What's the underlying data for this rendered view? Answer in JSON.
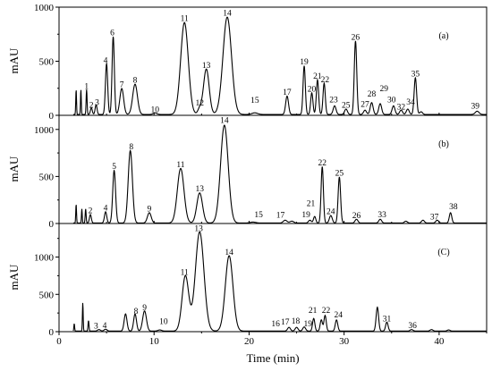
{
  "chart_data": {
    "type": "line",
    "xlabel": "Time (min)",
    "ylabel": "mAU",
    "xlim": [
      0,
      45
    ],
    "x_ticks": [
      "0",
      "10",
      "20",
      "30",
      "40"
    ],
    "grid": false,
    "panels": [
      {
        "label": "(a)",
        "ylim": [
          0,
          1000
        ],
        "y_ticks": [
          "0",
          "500",
          "1000"
        ],
        "baseline": 8,
        "peaks": [
          {
            "t": 1.8,
            "h": 230,
            "w": 0.04
          },
          {
            "t": 2.3,
            "h": 230,
            "w": 0.04
          },
          {
            "t": 2.9,
            "h": 230,
            "w": 0.05,
            "label": "1",
            "lx": 2.9,
            "ly": 245
          },
          {
            "t": 3.4,
            "h": 60,
            "w": 0.1,
            "label": "2",
            "lx": 3.4,
            "ly": 72
          },
          {
            "t": 3.9,
            "h": 90,
            "w": 0.1,
            "label": "3",
            "lx": 4.0,
            "ly": 95
          },
          {
            "t": 5.0,
            "h": 470,
            "w": 0.12,
            "label": "4",
            "lx": 4.9,
            "ly": 485
          },
          {
            "t": 5.7,
            "h": 720,
            "w": 0.12,
            "label": "6",
            "lx": 5.6,
            "ly": 740
          },
          {
            "t": 6.6,
            "h": 240,
            "w": 0.2,
            "label": "7",
            "lx": 6.6,
            "ly": 260
          },
          {
            "t": 8.0,
            "h": 280,
            "w": 0.25,
            "label": "8",
            "lx": 8.0,
            "ly": 300
          },
          {
            "t": 10.1,
            "h": 15,
            "w": 0.2,
            "label": "10",
            "lx": 10.1,
            "ly": 30
          },
          {
            "t": 13.2,
            "h": 850,
            "w": 0.4,
            "label": "11",
            "lx": 13.2,
            "ly": 870
          },
          {
            "t": 14.8,
            "h": 50,
            "w": 0.2,
            "label": "12",
            "lx": 14.8,
            "ly": 90
          },
          {
            "t": 15.5,
            "h": 420,
            "w": 0.3,
            "label": "13",
            "lx": 15.5,
            "ly": 440
          },
          {
            "t": 17.7,
            "h": 900,
            "w": 0.45,
            "label": "14",
            "lx": 17.7,
            "ly": 920
          },
          {
            "t": 20.6,
            "h": 15,
            "w": 0.3,
            "label": "15",
            "lx": 20.6,
            "ly": 115
          },
          {
            "t": 24.0,
            "h": 170,
            "w": 0.15,
            "label": "17",
            "lx": 24.0,
            "ly": 190
          },
          {
            "t": 25.8,
            "h": 450,
            "w": 0.12,
            "label": "19",
            "lx": 25.8,
            "ly": 470
          },
          {
            "t": 26.6,
            "h": 200,
            "w": 0.12,
            "label": "20",
            "lx": 26.6,
            "ly": 220
          },
          {
            "t": 27.2,
            "h": 320,
            "w": 0.12,
            "label": "21",
            "lx": 27.2,
            "ly": 340
          },
          {
            "t": 27.9,
            "h": 290,
            "w": 0.12,
            "label": "22",
            "lx": 28.0,
            "ly": 305
          },
          {
            "t": 29.0,
            "h": 80,
            "w": 0.15,
            "label": "23",
            "lx": 28.9,
            "ly": 120
          },
          {
            "t": 30.2,
            "h": 50,
            "w": 0.15,
            "label": "25",
            "lx": 30.2,
            "ly": 70
          },
          {
            "t": 31.2,
            "h": 680,
            "w": 0.13,
            "label": "26",
            "lx": 31.2,
            "ly": 700
          },
          {
            "t": 32.2,
            "h": 40,
            "w": 0.15,
            "label": "27",
            "lx": 32.2,
            "ly": 80
          },
          {
            "t": 32.9,
            "h": 110,
            "w": 0.15,
            "label": "28",
            "lx": 32.9,
            "ly": 175
          },
          {
            "t": 33.8,
            "h": 100,
            "w": 0.15,
            "label": "29",
            "lx": 34.2,
            "ly": 225
          },
          {
            "t": 35.2,
            "h": 80,
            "w": 0.15,
            "label": "30",
            "lx": 35.0,
            "ly": 120
          },
          {
            "t": 36.0,
            "h": 40,
            "w": 0.15,
            "label": "32",
            "lx": 36.0,
            "ly": 55
          },
          {
            "t": 36.7,
            "h": 50,
            "w": 0.15,
            "label": "34",
            "lx": 37.0,
            "ly": 100
          },
          {
            "t": 37.5,
            "h": 340,
            "w": 0.13,
            "label": "35",
            "lx": 37.5,
            "ly": 360
          },
          {
            "t": 38.1,
            "h": 25,
            "w": 0.15
          },
          {
            "t": 44.0,
            "h": 30,
            "w": 0.2,
            "label": "39",
            "lx": 43.8,
            "ly": 60
          }
        ]
      },
      {
        "label": "(b)",
        "ylim": [
          0,
          1150
        ],
        "y_ticks": [
          "0",
          "500",
          "1000"
        ],
        "baseline": 5,
        "peaks": [
          {
            "t": 1.8,
            "h": 200,
            "w": 0.04
          },
          {
            "t": 2.4,
            "h": 150,
            "w": 0.04
          },
          {
            "t": 2.8,
            "h": 150,
            "w": 0.05
          },
          {
            "t": 3.3,
            "h": 90,
            "w": 0.1,
            "label": "2",
            "lx": 3.3,
            "ly": 110
          },
          {
            "t": 4.9,
            "h": 120,
            "w": 0.12,
            "label": "4",
            "lx": 4.9,
            "ly": 140
          },
          {
            "t": 5.8,
            "h": 560,
            "w": 0.15,
            "label": "5",
            "lx": 5.8,
            "ly": 580
          },
          {
            "t": 7.5,
            "h": 770,
            "w": 0.22,
            "label": "8",
            "lx": 7.6,
            "ly": 790
          },
          {
            "t": 9.5,
            "h": 110,
            "w": 0.2,
            "label": "9",
            "lx": 9.5,
            "ly": 130
          },
          {
            "t": 12.8,
            "h": 580,
            "w": 0.35,
            "label": "11",
            "lx": 12.8,
            "ly": 600
          },
          {
            "t": 14.8,
            "h": 320,
            "w": 0.3,
            "label": "13",
            "lx": 14.8,
            "ly": 340
          },
          {
            "t": 17.4,
            "h": 1040,
            "w": 0.4,
            "label": "14",
            "lx": 17.4,
            "ly": 1070
          },
          {
            "t": 20.4,
            "h": 10,
            "w": 0.3,
            "label": "15",
            "lx": 21.0,
            "ly": 65
          },
          {
            "t": 23.8,
            "h": 30,
            "w": 0.2,
            "label": "17",
            "lx": 23.3,
            "ly": 60
          },
          {
            "t": 24.5,
            "h": 20,
            "w": 0.2
          },
          {
            "t": 26.4,
            "h": 30,
            "w": 0.15,
            "label": "19",
            "lx": 26.0,
            "ly": 65
          },
          {
            "t": 26.9,
            "h": 70,
            "w": 0.12,
            "label": "21",
            "lx": 26.5,
            "ly": 185
          },
          {
            "t": 27.7,
            "h": 600,
            "w": 0.12,
            "label": "22",
            "lx": 27.7,
            "ly": 620
          },
          {
            "t": 28.6,
            "h": 80,
            "w": 0.15,
            "label": "24",
            "lx": 28.6,
            "ly": 100
          },
          {
            "t": 29.5,
            "h": 490,
            "w": 0.13,
            "label": "25",
            "lx": 29.5,
            "ly": 510
          },
          {
            "t": 31.3,
            "h": 40,
            "w": 0.15,
            "label": "26",
            "lx": 31.3,
            "ly": 55
          },
          {
            "t": 33.8,
            "h": 40,
            "w": 0.15,
            "label": "33",
            "lx": 34.0,
            "ly": 65
          },
          {
            "t": 36.5,
            "h": 20,
            "w": 0.15
          },
          {
            "t": 38.3,
            "h": 30,
            "w": 0.15
          },
          {
            "t": 39.8,
            "h": 30,
            "w": 0.15,
            "label": "37",
            "lx": 39.5,
            "ly": 45
          },
          {
            "t": 41.2,
            "h": 110,
            "w": 0.13,
            "label": "38",
            "lx": 41.5,
            "ly": 150
          }
        ]
      },
      {
        "label": "(C)",
        "ylim": [
          0,
          1450
        ],
        "y_ticks": [
          "0",
          "500",
          "1000"
        ],
        "baseline": 8,
        "peaks": [
          {
            "t": 1.6,
            "h": 100,
            "w": 0.04
          },
          {
            "t": 2.5,
            "h": 380,
            "w": 0.04
          },
          {
            "t": 3.1,
            "h": 140,
            "w": 0.05
          },
          {
            "t": 4.2,
            "h": 20,
            "w": 0.15,
            "label": "3",
            "lx": 3.9,
            "ly": 40
          },
          {
            "t": 4.9,
            "h": 25,
            "w": 0.15,
            "label": "4",
            "lx": 4.8,
            "ly": 50
          },
          {
            "t": 7.0,
            "h": 230,
            "w": 0.15
          },
          {
            "t": 8.0,
            "h": 230,
            "w": 0.15,
            "label": "8",
            "lx": 8.1,
            "ly": 240
          },
          {
            "t": 9.0,
            "h": 270,
            "w": 0.2,
            "label": "9",
            "lx": 9.0,
            "ly": 290
          },
          {
            "t": 10.6,
            "h": 15,
            "w": 0.2,
            "label": "10",
            "lx": 11.0,
            "ly": 100
          },
          {
            "t": 13.3,
            "h": 740,
            "w": 0.35,
            "label": "11",
            "lx": 13.2,
            "ly": 760
          },
          {
            "t": 14.8,
            "h": 1330,
            "w": 0.45,
            "label": "13",
            "lx": 14.7,
            "ly": 1350
          },
          {
            "t": 17.9,
            "h": 1010,
            "w": 0.4,
            "label": "14",
            "lx": 17.9,
            "ly": 1030
          },
          {
            "t": 24.2,
            "h": 50,
            "w": 0.15,
            "label": "16",
            "lx": 22.8,
            "ly": 70
          },
          {
            "t": 25.0,
            "h": 50,
            "w": 0.15,
            "label": "17",
            "lx": 23.8,
            "ly": 95
          },
          {
            "t": 25.8,
            "h": 55,
            "w": 0.15,
            "label": "18",
            "lx": 24.9,
            "ly": 105
          },
          {
            "t": 26.8,
            "h": 170,
            "w": 0.12,
            "label": "21",
            "lx": 26.7,
            "ly": 250
          },
          {
            "t": 27.6,
            "h": 150,
            "w": 0.12,
            "label": "19",
            "lx": 26.2,
            "ly": 70
          },
          {
            "t": 28.0,
            "h": 210,
            "w": 0.12,
            "label": "22",
            "lx": 28.1,
            "ly": 250
          },
          {
            "t": 29.2,
            "h": 150,
            "w": 0.13,
            "label": "24",
            "lx": 29.4,
            "ly": 190
          },
          {
            "t": 33.5,
            "h": 320,
            "w": 0.13
          },
          {
            "t": 34.5,
            "h": 120,
            "w": 0.13,
            "label": "31",
            "lx": 34.5,
            "ly": 140
          },
          {
            "t": 37.1,
            "h": 20,
            "w": 0.15,
            "label": "36",
            "lx": 37.2,
            "ly": 45
          },
          {
            "t": 39.2,
            "h": 20,
            "w": 0.15
          },
          {
            "t": 41.0,
            "h": 15,
            "w": 0.15
          }
        ]
      }
    ]
  }
}
